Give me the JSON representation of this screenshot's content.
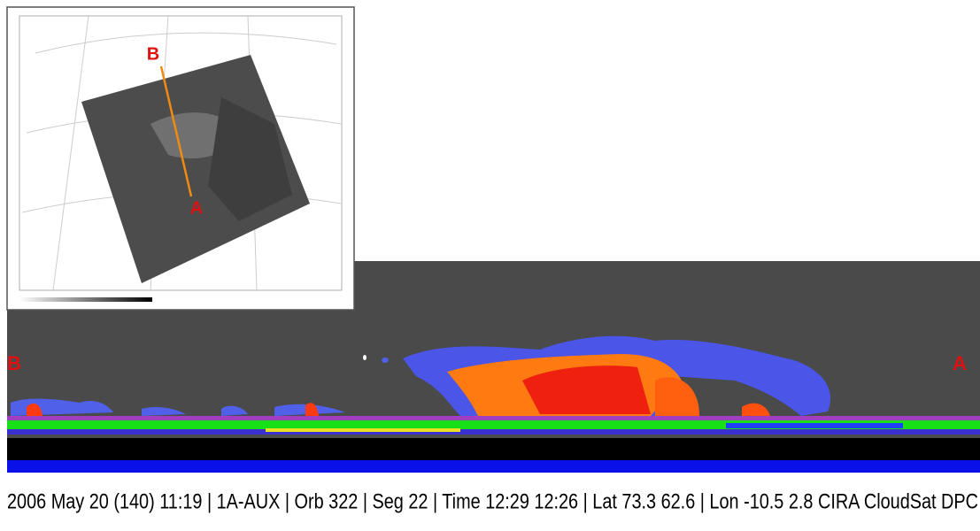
{
  "map": {
    "label_b": "B",
    "label_a": "A"
  },
  "profile": {
    "label_b": "B",
    "label_a": "A"
  },
  "caption": "2006 May 20 (140) 11:19 | 1A-AUX | Orb 322 | Seg 22 | Time 12:29 12:26 | Lat 73.3 62.6 | Lon -10.5 2.8   CIRA CloudSat DPC"
}
